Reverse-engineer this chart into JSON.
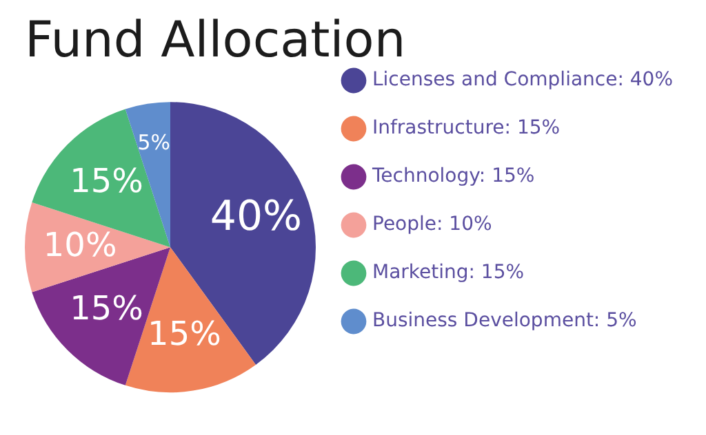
{
  "chart_data": {
    "type": "pie",
    "title": "Fund Allocation",
    "categories": [
      "Licenses and Compliance",
      "Infrastructure",
      "Technology",
      "People",
      "Marketing",
      "Business Development"
    ],
    "values": [
      40,
      15,
      15,
      10,
      15,
      5
    ],
    "value_labels": [
      "40%",
      "15%",
      "15%",
      "10%",
      "15%",
      "5%"
    ],
    "colors": [
      "#4b4596",
      "#f08259",
      "#7c2f8b",
      "#f4a19a",
      "#4cb879",
      "#5f8dcd"
    ],
    "legend": "right"
  }
}
